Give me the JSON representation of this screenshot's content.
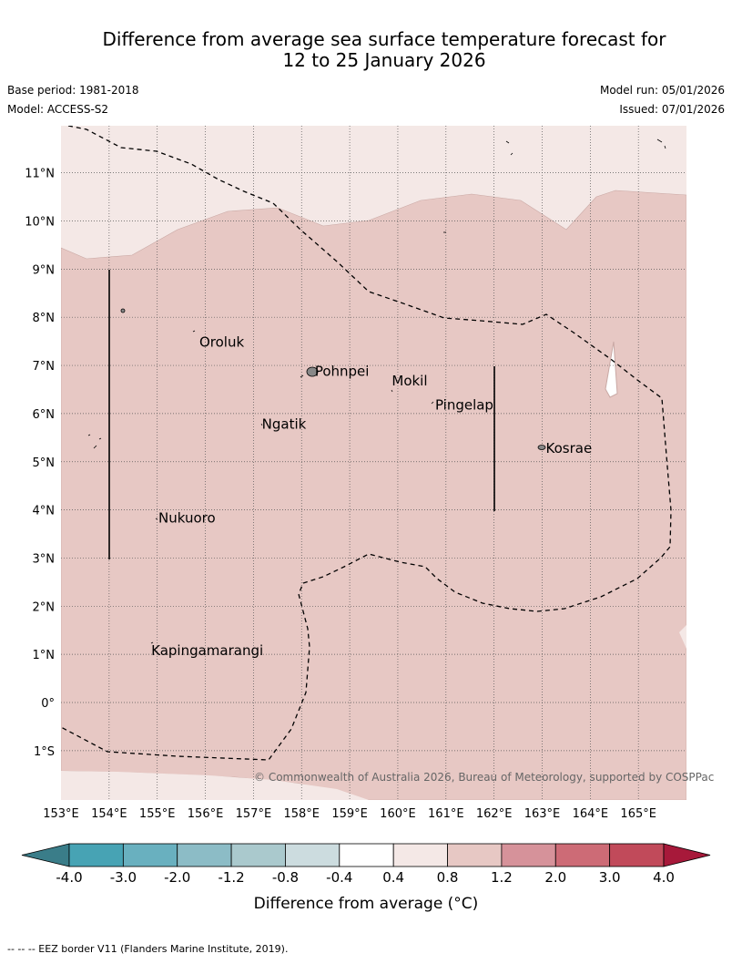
{
  "title": {
    "line1": "Difference from average sea surface temperature forecast for",
    "line2": "12 to 25 January 2026"
  },
  "meta": {
    "base_period": "Base period: 1981-2018",
    "model": "Model: ACCESS-S2",
    "model_run": "Model run: 05/01/2026",
    "issued": "Issued: 07/01/2026"
  },
  "map": {
    "lon_range": [
      153,
      166
    ],
    "lat_range": [
      -2,
      12
    ],
    "lat_ticks": [
      {
        "lat": 11,
        "label": "11°N"
      },
      {
        "lat": 10,
        "label": "10°N"
      },
      {
        "lat": 9,
        "label": "9°N"
      },
      {
        "lat": 8,
        "label": "8°N"
      },
      {
        "lat": 7,
        "label": "7°N"
      },
      {
        "lat": 6,
        "label": "6°N"
      },
      {
        "lat": 5,
        "label": "5°N"
      },
      {
        "lat": 4,
        "label": "4°N"
      },
      {
        "lat": 3,
        "label": "3°N"
      },
      {
        "lat": 2,
        "label": "2°N"
      },
      {
        "lat": 1,
        "label": "1°N"
      },
      {
        "lat": 0,
        "label": "0°"
      },
      {
        "lat": -1,
        "label": "1°S"
      }
    ],
    "lon_ticks": [
      {
        "lon": 153,
        "label": "153°E"
      },
      {
        "lon": 154,
        "label": "154°E"
      },
      {
        "lon": 155,
        "label": "155°E"
      },
      {
        "lon": 156,
        "label": "156°E"
      },
      {
        "lon": 157,
        "label": "157°E"
      },
      {
        "lon": 158,
        "label": "158°E"
      },
      {
        "lon": 159,
        "label": "159°E"
      },
      {
        "lon": 160,
        "label": "160°E"
      },
      {
        "lon": 161,
        "label": "161°E"
      },
      {
        "lon": 162,
        "label": "162°E"
      },
      {
        "lon": 163,
        "label": "163°E"
      },
      {
        "lon": 164,
        "label": "164°E"
      },
      {
        "lon": 165,
        "label": "165°E"
      }
    ],
    "places": [
      {
        "name": "Oroluk",
        "lon": 155.8,
        "lat": 7.5
      },
      {
        "name": "Pohnpei",
        "lon": 158.2,
        "lat": 6.9
      },
      {
        "name": "Mokil",
        "lon": 159.8,
        "lat": 6.7
      },
      {
        "name": "Pingelap",
        "lon": 160.7,
        "lat": 6.2
      },
      {
        "name": "Ngatik",
        "lon": 157.1,
        "lat": 5.8
      },
      {
        "name": "Kosrae",
        "lon": 163.0,
        "lat": 5.3
      },
      {
        "name": "Nukuoro",
        "lon": 154.95,
        "lat": 3.85
      },
      {
        "name": "Kapingamarangi",
        "lon": 154.8,
        "lat": 1.1
      }
    ],
    "background_color": "#f4e8e6",
    "anomaly_fill_color": "#e7c8c4",
    "copyright": "© Commonwealth of Australia 2026, Bureau of Meteorology, supported by COSPPac"
  },
  "colorbar": {
    "title": "Difference from average (°C)",
    "labels": [
      "-4.0",
      "-3.0",
      "-2.0",
      "-1.2",
      "-0.8",
      "-0.4",
      "0.4",
      "0.8",
      "1.2",
      "2.0",
      "3.0",
      "4.0"
    ],
    "colors": [
      "#3a7d89",
      "#47a3b4",
      "#69b0bf",
      "#8cbcc6",
      "#aac9cd",
      "#ccdcdf",
      "#ffffff",
      "#f4e8e6",
      "#e7c8c4",
      "#d6929a",
      "#cd6b76",
      "#c14a5a",
      "#a7193a"
    ]
  },
  "footnote": "--  --  -- EEZ border V11 (Flanders Marine Institute, 2019)."
}
